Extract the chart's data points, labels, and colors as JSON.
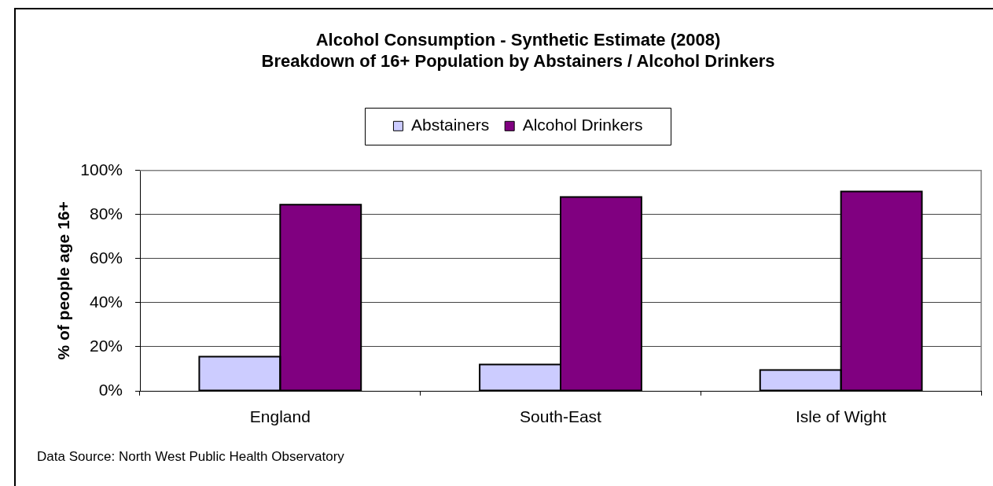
{
  "chart_data": {
    "type": "bar",
    "title": "Alcohol Consumption - Synthetic Estimate (2008)",
    "subtitle": "Breakdown of 16+ Population by Abstainers / Alcohol Drinkers",
    "ylabel": "% of people age 16+",
    "categories": [
      "England",
      "South-East",
      "Isle of Wight"
    ],
    "series": [
      {
        "name": "Abstainers",
        "color": "#ccccff",
        "values": [
          15.5,
          12,
          9.5
        ]
      },
      {
        "name": "Alcohol Drinkers",
        "color": "#800080",
        "values": [
          84.5,
          88,
          90.5
        ]
      }
    ],
    "ylim": [
      0,
      100
    ],
    "yticks": [
      {
        "value": 0,
        "label": "0%"
      },
      {
        "value": 20,
        "label": "20%"
      },
      {
        "value": 40,
        "label": "40%"
      },
      {
        "value": 60,
        "label": "60%"
      },
      {
        "value": 80,
        "label": "80%"
      },
      {
        "value": 100,
        "label": "100%"
      }
    ],
    "grid": "y",
    "legend": "top",
    "annotations": [
      "Data Source: North West Public Health Observatory"
    ]
  }
}
